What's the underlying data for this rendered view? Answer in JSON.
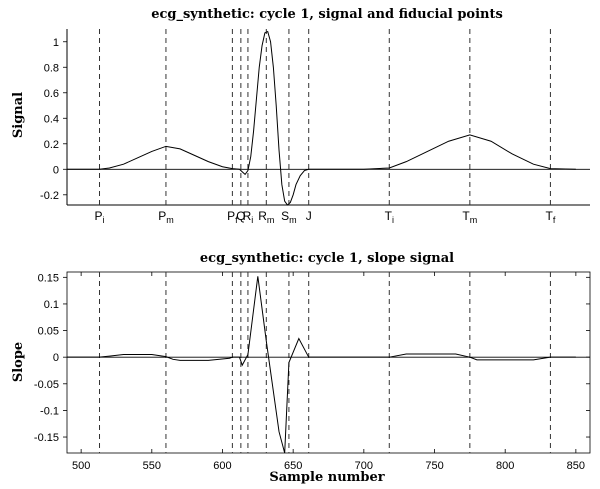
{
  "chart_data": [
    {
      "id": "signal",
      "type": "line",
      "title": "ecg_synthetic: cycle 1, signal and fiducial points",
      "xlabel": "",
      "ylabel": "Signal",
      "xlim": [
        490,
        860
      ],
      "ylim": [
        -0.28,
        1.1
      ],
      "yticks": [
        -0.2,
        0,
        0.2,
        0.4,
        0.6,
        0.8,
        1
      ],
      "ytick_labels": [
        "-0.2",
        "0",
        "0.2",
        "0.4",
        "0.6",
        "0.8",
        "1"
      ],
      "grid": false,
      "series": [
        {
          "x": [
            490,
            505,
            513,
            520,
            530,
            540,
            550,
            560,
            570,
            580,
            590,
            600,
            607,
            612,
            614,
            616,
            618,
            620,
            622,
            624,
            626,
            628,
            630,
            632,
            634,
            636,
            638,
            640,
            642,
            644,
            646,
            648,
            650,
            652,
            655,
            658,
            661,
            670,
            700,
            718,
            730,
            745,
            760,
            775,
            790,
            805,
            820,
            832,
            850
          ],
          "y": [
            0,
            0,
            0,
            0.01,
            0.04,
            0.09,
            0.14,
            0.18,
            0.16,
            0.11,
            0.06,
            0.02,
            0.005,
            0,
            -0.02,
            -0.04,
            -0.01,
            0.1,
            0.3,
            0.55,
            0.8,
            0.97,
            1.07,
            1.08,
            1.0,
            0.8,
            0.5,
            0.15,
            -0.12,
            -0.25,
            -0.28,
            -0.26,
            -0.2,
            -0.12,
            -0.05,
            -0.01,
            0,
            0,
            0,
            0.01,
            0.06,
            0.14,
            0.22,
            0.27,
            0.22,
            0.12,
            0.04,
            0.005,
            0
          ]
        }
      ],
      "fiducials": [
        {
          "x": 513,
          "base": "P",
          "sub": "i"
        },
        {
          "x": 560,
          "base": "P",
          "sub": "m"
        },
        {
          "x": 607,
          "base": "P",
          "sub": "f"
        },
        {
          "x": 613,
          "base": "Q",
          "sub": ""
        },
        {
          "x": 618,
          "base": "R",
          "sub": "i"
        },
        {
          "x": 631,
          "base": "R",
          "sub": "m"
        },
        {
          "x": 647,
          "base": "S",
          "sub": "m"
        },
        {
          "x": 661,
          "base": "J",
          "sub": ""
        },
        {
          "x": 718,
          "base": "T",
          "sub": "i"
        },
        {
          "x": 775,
          "base": "T",
          "sub": "m"
        },
        {
          "x": 832,
          "base": "T",
          "sub": "f"
        }
      ]
    },
    {
      "id": "slope",
      "type": "line",
      "title": "ecg_synthetic: cycle 1, slope signal",
      "xlabel": "Sample number",
      "ylabel": "Slope",
      "xlim": [
        490,
        860
      ],
      "ylim": [
        -0.18,
        0.16
      ],
      "xticks": [
        500,
        550,
        600,
        650,
        700,
        750,
        800,
        850
      ],
      "xtick_labels": [
        "500",
        "550",
        "600",
        "650",
        "700",
        "750",
        "800",
        "850"
      ],
      "yticks": [
        -0.15,
        -0.1,
        -0.05,
        0,
        0.05,
        0.1,
        0.15
      ],
      "ytick_labels": [
        "-0.15",
        "-0.1",
        "-0.05",
        "0",
        "0.05",
        "0.1",
        "0.15"
      ],
      "grid": false,
      "vlines": [
        513,
        560,
        607,
        613,
        618,
        631,
        647,
        661,
        718,
        775,
        832
      ],
      "series": [
        {
          "x": [
            490,
            513,
            520,
            530,
            550,
            560,
            565,
            570,
            590,
            605,
            607,
            612,
            614,
            618,
            625,
            631,
            640,
            644,
            647,
            654,
            661,
            700,
            718,
            730,
            765,
            775,
            780,
            800,
            820,
            832,
            850
          ],
          "y": [
            0,
            0,
            0.002,
            0.005,
            0.005,
            0.001,
            -0.004,
            -0.006,
            -0.006,
            -0.002,
            0,
            0,
            -0.015,
            0.005,
            0.152,
            0.03,
            -0.14,
            -0.18,
            -0.01,
            0.035,
            0,
            0,
            0,
            0.006,
            0.006,
            0,
            -0.005,
            -0.005,
            -0.005,
            0,
            0
          ]
        }
      ]
    }
  ]
}
